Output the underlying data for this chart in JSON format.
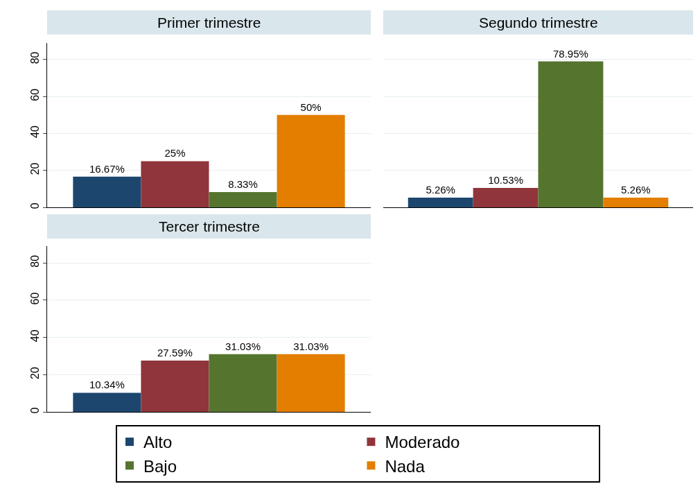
{
  "chart_data": [
    {
      "type": "bar",
      "title": "Primer trimestre",
      "categories": [
        null
      ],
      "ylim": [
        0,
        89
      ],
      "yticks": [
        0,
        20,
        40,
        60,
        80
      ],
      "grid": "y",
      "legend": "bottom",
      "tick_labels": "y",
      "series": [
        {
          "name": "Alto",
          "color": "#1c466e",
          "values": [
            16.67
          ],
          "value_labels": [
            "16.67%"
          ]
        },
        {
          "name": "Moderado",
          "color": "#90353b",
          "values": [
            25
          ],
          "value_labels": [
            "25%"
          ]
        },
        {
          "name": "Bajo",
          "color": "#55752f",
          "values": [
            8.33
          ],
          "value_labels": [
            "8.33%"
          ]
        },
        {
          "name": "Nada",
          "color": "#e37e00",
          "values": [
            50
          ],
          "value_labels": [
            "50%"
          ]
        }
      ]
    },
    {
      "type": "bar",
      "title": "Segundo trimestre",
      "categories": [
        null
      ],
      "grid": "y",
      "tick_labels": false,
      "series": [
        {
          "color": "#1c466e",
          "values": [
            5.26
          ],
          "value_labels": [
            "5.26%"
          ]
        },
        {
          "color": "#90353b",
          "values": [
            10.53
          ],
          "value_labels": [
            "10.53%"
          ]
        },
        {
          "color": "#55752f",
          "values": [
            78.95
          ],
          "value_labels": [
            "78.95%"
          ]
        },
        {
          "color": "#e37e00",
          "values": [
            5.26
          ],
          "value_labels": [
            "5.26%"
          ]
        }
      ]
    },
    {
      "type": "bar",
      "title": "Tercer trimestre",
      "categories": [
        null
      ],
      "ylim": [
        0,
        89
      ],
      "yticks": [
        0,
        20,
        40,
        60,
        80
      ],
      "grid": "y",
      "tick_labels": "y",
      "series": [
        {
          "color": "#1c466e",
          "values": [
            10.34
          ],
          "value_labels": [
            "10.34%"
          ]
        },
        {
          "color": "#90353b",
          "values": [
            27.59
          ],
          "value_labels": [
            "27.59%"
          ]
        },
        {
          "color": "#55752f",
          "values": [
            31.03
          ],
          "value_labels": [
            "31.03%"
          ]
        },
        {
          "color": "#e37e00",
          "values": [
            31.03
          ],
          "value_labels": [
            "31.03%"
          ]
        }
      ]
    }
  ]
}
